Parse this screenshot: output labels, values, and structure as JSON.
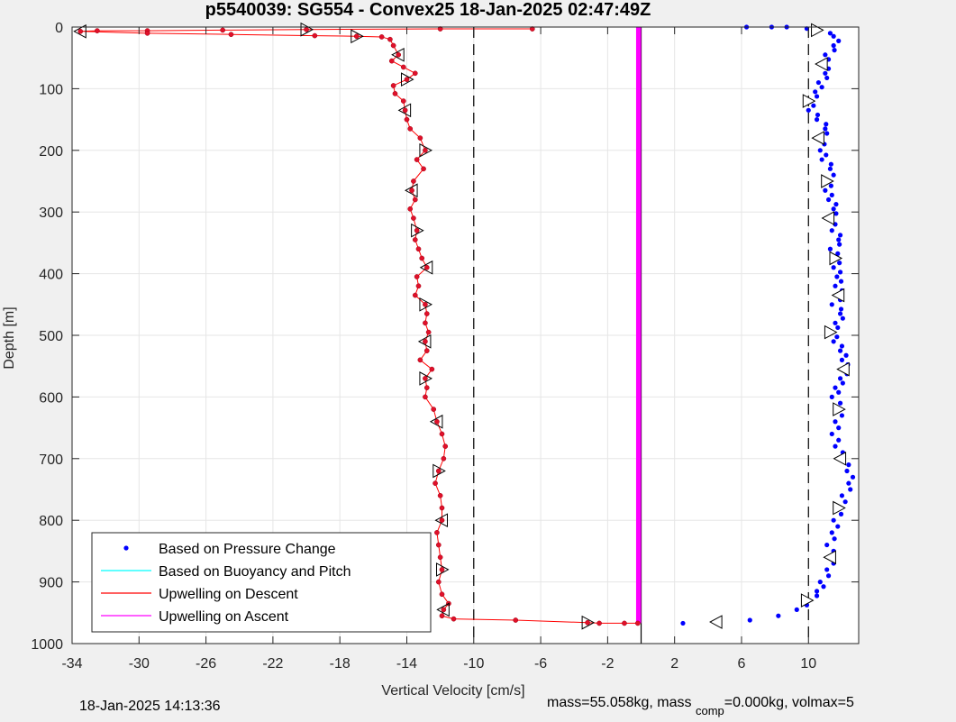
{
  "chart_data": {
    "type": "scatter",
    "title": "p5540039: SG554 - Convex25 18-Jan-2025 02:47:49Z",
    "xlabel": "Vertical Velocity [cm/s]",
    "ylabel": "Depth [m]",
    "xlim": [
      -34,
      13
    ],
    "ylim": [
      0,
      1000
    ],
    "y_reversed": true,
    "grid": true,
    "x_ticks": [
      -34,
      -30,
      -26,
      -22,
      -18,
      -14,
      -10,
      -6,
      -2,
      2,
      6,
      10
    ],
    "x_tick_labels": [
      "-34",
      "-30",
      "-26",
      "-22",
      "-18",
      "-14",
      "-10",
      "-6",
      "-2",
      "2",
      "6",
      "10"
    ],
    "y_ticks": [
      0,
      100,
      200,
      300,
      400,
      500,
      600,
      700,
      800,
      900,
      1000
    ],
    "y_tick_labels": [
      "0",
      "100",
      "200",
      "300",
      "400",
      "500",
      "600",
      "700",
      "800",
      "900",
      "1000"
    ],
    "reference_lines": [
      {
        "x": -10,
        "style": "dashed",
        "color": "#000000"
      },
      {
        "x": 10,
        "style": "dashed",
        "color": "#000000"
      },
      {
        "x": 0,
        "style": "solid",
        "color": "#000000"
      }
    ],
    "legend_location": "bottom-left",
    "legend": [
      {
        "label": "Based on Pressure Change",
        "marker": "dot",
        "color": "#0000ff"
      },
      {
        "label": "Based on Buoyancy and Pitch",
        "marker": "line",
        "color": "#00ffff"
      },
      {
        "label": "Upwelling on Descent",
        "marker": "line",
        "color": "#ff0000"
      },
      {
        "label": "Upwelling on Ascent",
        "marker": "line",
        "color": "#ff00ff"
      }
    ],
    "series": [
      {
        "name": "Upwelling on Descent",
        "color": "#ff0000",
        "points": [
          [
            -6.5,
            3
          ],
          [
            -12,
            3
          ],
          [
            -20,
            4
          ],
          [
            -25,
            5
          ],
          [
            -29.5,
            6
          ],
          [
            -32.5,
            6
          ],
          [
            -33.5,
            7
          ],
          [
            -29.5,
            10
          ],
          [
            -24.5,
            12
          ],
          [
            -19.5,
            14
          ],
          [
            -17,
            15
          ],
          [
            -15.5,
            16
          ],
          [
            -15,
            20
          ],
          [
            -14.8,
            30
          ],
          [
            -14.5,
            45
          ],
          [
            -14.9,
            55
          ],
          [
            -14.2,
            65
          ],
          [
            -13.5,
            75
          ],
          [
            -14,
            85
          ],
          [
            -14.8,
            95
          ],
          [
            -14.7,
            108
          ],
          [
            -14.2,
            120
          ],
          [
            -14.1,
            135
          ],
          [
            -14,
            150
          ],
          [
            -13.8,
            165
          ],
          [
            -13.2,
            180
          ],
          [
            -12.9,
            200
          ],
          [
            -13.4,
            215
          ],
          [
            -13,
            230
          ],
          [
            -13.6,
            250
          ],
          [
            -13.7,
            265
          ],
          [
            -13.5,
            280
          ],
          [
            -13.8,
            295
          ],
          [
            -13.6,
            310
          ],
          [
            -13.4,
            330
          ],
          [
            -13.5,
            345
          ],
          [
            -13.3,
            360
          ],
          [
            -13.1,
            375
          ],
          [
            -12.8,
            390
          ],
          [
            -13.4,
            405
          ],
          [
            -13.3,
            420
          ],
          [
            -13.5,
            435
          ],
          [
            -12.9,
            450
          ],
          [
            -12.8,
            465
          ],
          [
            -12.9,
            480
          ],
          [
            -12.7,
            495
          ],
          [
            -12.9,
            510
          ],
          [
            -12.8,
            525
          ],
          [
            -13.2,
            540
          ],
          [
            -12.5,
            555
          ],
          [
            -12.9,
            570
          ],
          [
            -12.8,
            585
          ],
          [
            -12.9,
            600
          ],
          [
            -12.4,
            620
          ],
          [
            -12.2,
            640
          ],
          [
            -11.9,
            660
          ],
          [
            -11.7,
            680
          ],
          [
            -11.8,
            700
          ],
          [
            -12.1,
            720
          ],
          [
            -12.3,
            740
          ],
          [
            -12,
            760
          ],
          [
            -11.9,
            780
          ],
          [
            -11.9,
            800
          ],
          [
            -12.2,
            820
          ],
          [
            -12.1,
            840
          ],
          [
            -12,
            860
          ],
          [
            -11.9,
            880
          ],
          [
            -12.1,
            900
          ],
          [
            -11.9,
            920
          ],
          [
            -11.5,
            935
          ],
          [
            -11.8,
            945
          ],
          [
            -11.9,
            955
          ],
          [
            -11.2,
            960
          ],
          [
            -7.5,
            962
          ],
          [
            -3.2,
            966
          ],
          [
            -2.5,
            967
          ],
          [
            -1,
            967
          ],
          [
            -0.2,
            967
          ]
        ]
      },
      {
        "name": "Upwelling on Ascent",
        "color": "#ff00ff",
        "x_range": [
          -0.3,
          0
        ],
        "depth_range": [
          0,
          967
        ]
      },
      {
        "name": "Based on Pressure Change",
        "color": "#0000ff",
        "points": [
          [
            6.3,
            0
          ],
          [
            8.7,
            0
          ],
          [
            10.5,
            5
          ],
          [
            11.5,
            15
          ],
          [
            11.5,
            30
          ],
          [
            11,
            45
          ],
          [
            10.8,
            60
          ],
          [
            11,
            75
          ],
          [
            10.6,
            90
          ],
          [
            10.4,
            105
          ],
          [
            10,
            120
          ],
          [
            10,
            135
          ],
          [
            10.5,
            150
          ],
          [
            11,
            165
          ],
          [
            10.6,
            180
          ],
          [
            10.7,
            200
          ],
          [
            10.8,
            215
          ],
          [
            11.3,
            230
          ],
          [
            11.1,
            250
          ],
          [
            11,
            265
          ],
          [
            11.2,
            280
          ],
          [
            11.5,
            295
          ],
          [
            11.2,
            310
          ],
          [
            11.4,
            330
          ],
          [
            11.8,
            345
          ],
          [
            11.3,
            360
          ],
          [
            11.6,
            375
          ],
          [
            11.5,
            390
          ],
          [
            11.7,
            405
          ],
          [
            11.6,
            420
          ],
          [
            11.8,
            435
          ],
          [
            11.4,
            450
          ],
          [
            11.9,
            465
          ],
          [
            11.6,
            480
          ],
          [
            11.3,
            495
          ],
          [
            11.5,
            510
          ],
          [
            11.9,
            525
          ],
          [
            12,
            540
          ],
          [
            12.1,
            555
          ],
          [
            11.9,
            570
          ],
          [
            11.6,
            585
          ],
          [
            11.4,
            600
          ],
          [
            11.8,
            620
          ],
          [
            11.6,
            640
          ],
          [
            11.4,
            660
          ],
          [
            11.6,
            680
          ],
          [
            11.9,
            700
          ],
          [
            12.3,
            720
          ],
          [
            12.4,
            740
          ],
          [
            12,
            760
          ],
          [
            11.8,
            780
          ],
          [
            11.5,
            800
          ],
          [
            11.4,
            820
          ],
          [
            11.1,
            840
          ],
          [
            11.3,
            860
          ],
          [
            11.1,
            880
          ],
          [
            10.7,
            900
          ],
          [
            10.5,
            915
          ],
          [
            9.9,
            930
          ],
          [
            9.3,
            945
          ],
          [
            8.2,
            955
          ],
          [
            6.5,
            962
          ],
          [
            4.5,
            965
          ],
          [
            2.5,
            967
          ]
        ]
      }
    ]
  },
  "footer": {
    "timestamp": "18-Jan-2025 14:13:36",
    "mass_text": "mass=55.058kg, mass",
    "comp_sub": "comp",
    "comp_text": "=0.000kg, volmax=5"
  }
}
